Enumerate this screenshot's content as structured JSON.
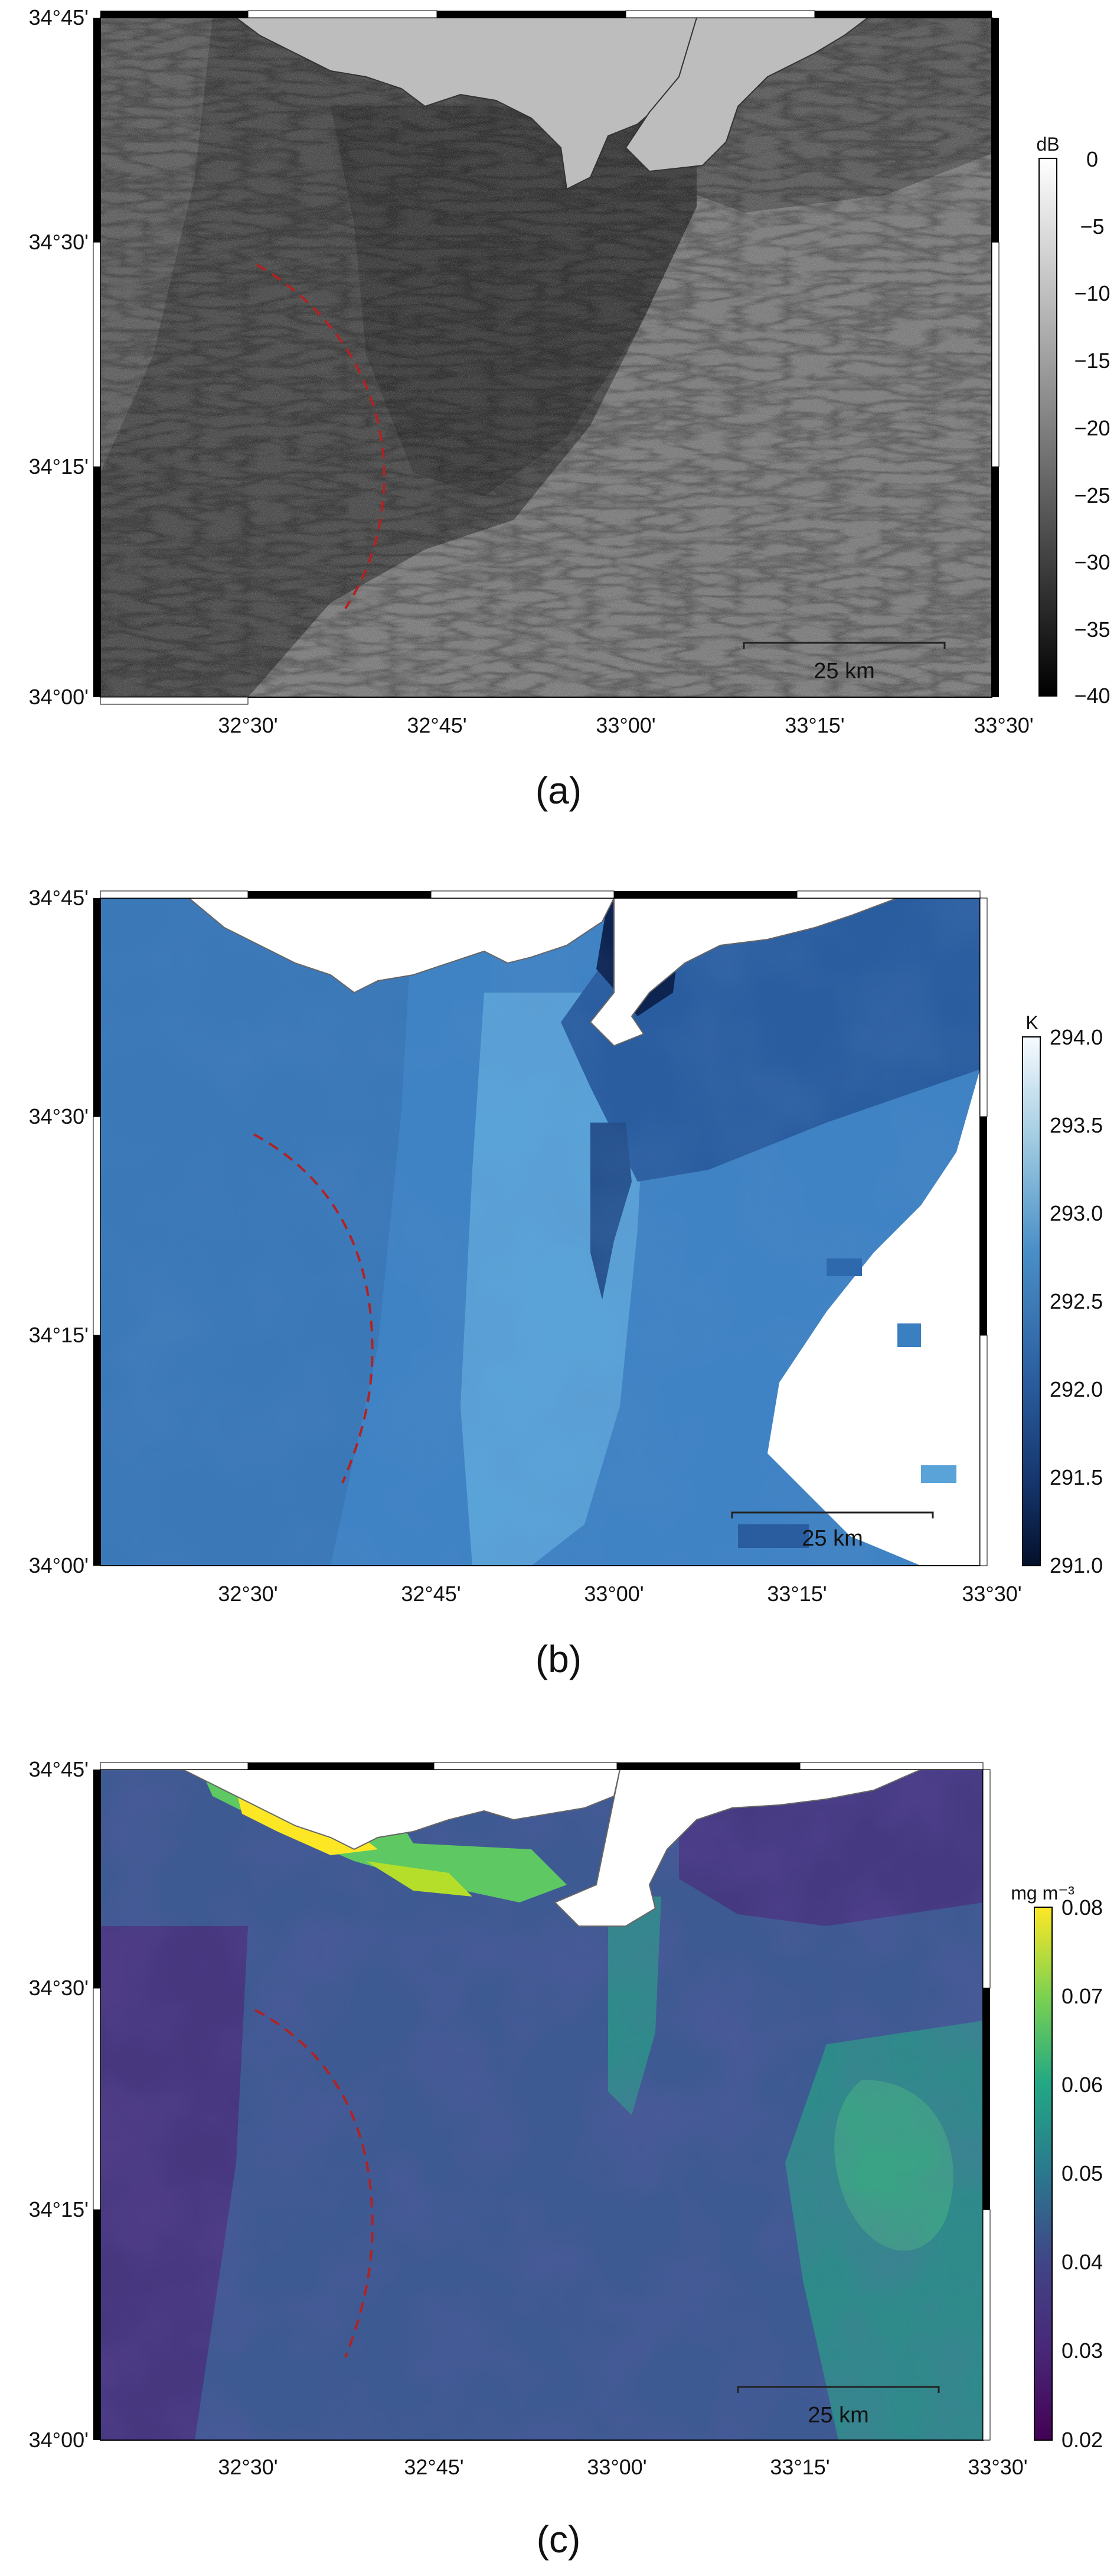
{
  "panels": [
    {
      "caption": "(a)",
      "colorbar": {
        "unit": "dB",
        "ticks": [
          "0",
          "−5",
          "−10",
          "−15",
          "−20",
          "−25",
          "−30",
          "−35",
          "−40"
        ],
        "range": [
          -40,
          0
        ],
        "colormap": "greyscale"
      },
      "y_ticks": [
        "34°45'",
        "34°30'",
        "34°15'",
        "34°00'"
      ],
      "x_ticks": [
        "32°30'",
        "32°45'",
        "33°00'",
        "33°15'",
        "33°30'"
      ],
      "scale_bar": "25 km"
    },
    {
      "caption": "(b)",
      "colorbar": {
        "unit": "K",
        "ticks": [
          "294.0",
          "293.5",
          "293.0",
          "292.5",
          "292.0",
          "291.5",
          "291.0"
        ],
        "range": [
          291.0,
          294.0
        ],
        "colormap": "blues"
      },
      "y_ticks": [
        "34°45'",
        "34°30'",
        "34°15'",
        "34°00'"
      ],
      "x_ticks": [
        "32°30'",
        "32°45'",
        "33°00'",
        "33°15'",
        "33°30'"
      ],
      "scale_bar": "25 km"
    },
    {
      "caption": "(c)",
      "colorbar": {
        "unit": "mg m⁻³",
        "ticks": [
          "0.08",
          "0.07",
          "0.06",
          "0.05",
          "0.04",
          "0.03",
          "0.02"
        ],
        "range": [
          0.02,
          0.08
        ],
        "colormap": "viridis"
      },
      "y_ticks": [
        "34°45'",
        "34°30'",
        "34°15'",
        "34°00'"
      ],
      "x_ticks": [
        "32°30'",
        "32°45'",
        "33°00'",
        "33°15'",
        "33°30'"
      ],
      "scale_bar": "25 km"
    }
  ],
  "colors": {
    "front_line": "#b22222",
    "land": "#ffffff",
    "coast": "#555555"
  }
}
